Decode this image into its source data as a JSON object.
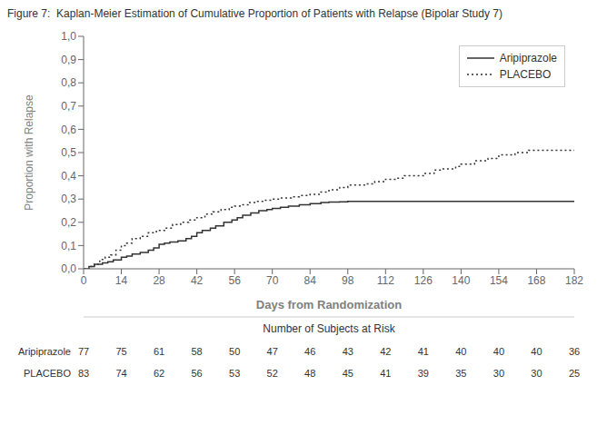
{
  "chart_data": {
    "type": "step",
    "title": "Figure 7:  Kaplan-Meier Estimation of Cumulative Proportion of Patients with Relapse (Bipolar Study 7)",
    "xlabel": "Days from Randomization",
    "ylabel": "Proportion with Relapse",
    "xlim": [
      0,
      182
    ],
    "ylim": [
      0.0,
      1.0
    ],
    "xticks": [
      0,
      14,
      28,
      42,
      56,
      70,
      84,
      98,
      112,
      126,
      140,
      154,
      168,
      182
    ],
    "yticks": [
      {
        "value": 0.0,
        "label": "0,0"
      },
      {
        "value": 0.1,
        "label": "0,1"
      },
      {
        "value": 0.2,
        "label": "0,2"
      },
      {
        "value": 0.3,
        "label": "0,3"
      },
      {
        "value": 0.4,
        "label": "0,4"
      },
      {
        "value": 0.5,
        "label": "0,5"
      },
      {
        "value": 0.6,
        "label": "0,6"
      },
      {
        "value": 0.7,
        "label": "0,7"
      },
      {
        "value": 0.8,
        "label": "0,8"
      },
      {
        "value": 0.9,
        "label": "0,9"
      },
      {
        "value": 1.0,
        "label": "1,0"
      }
    ],
    "grid": false,
    "legend": "upper right",
    "series": [
      {
        "name": "Aripiprazole",
        "color": "#333333",
        "line_style": "solid",
        "x": [
          0,
          2,
          4,
          7,
          9,
          11,
          14,
          16,
          18,
          21,
          24,
          26,
          28,
          30,
          32,
          35,
          38,
          40,
          42,
          44,
          47,
          49,
          52,
          55,
          57,
          59,
          62,
          65,
          68,
          70,
          73,
          76,
          80,
          84,
          88,
          91,
          95,
          98,
          102,
          105,
          108,
          112,
          116,
          119,
          182
        ],
        "values": [
          0.0,
          0.01,
          0.02,
          0.025,
          0.03,
          0.038,
          0.05,
          0.055,
          0.063,
          0.07,
          0.08,
          0.09,
          0.105,
          0.11,
          0.115,
          0.12,
          0.13,
          0.14,
          0.155,
          0.165,
          0.175,
          0.185,
          0.2,
          0.21,
          0.22,
          0.23,
          0.24,
          0.25,
          0.255,
          0.26,
          0.265,
          0.27,
          0.275,
          0.28,
          0.285,
          0.287,
          0.288,
          0.29,
          0.29,
          0.29,
          0.29,
          0.29,
          0.29,
          0.29,
          0.29
        ]
      },
      {
        "name": "PLACEBO",
        "color": "#333333",
        "line_style": "dotted",
        "x": [
          0,
          2,
          4,
          6,
          8,
          10,
          12,
          14,
          16,
          18,
          21,
          24,
          27,
          30,
          33,
          36,
          39,
          42,
          45,
          48,
          51,
          54,
          56,
          58,
          61,
          64,
          67,
          70,
          73,
          77,
          80,
          84,
          88,
          91,
          95,
          98,
          105,
          108,
          112,
          116,
          119,
          126,
          130,
          133,
          138,
          140,
          145,
          150,
          154,
          160,
          165,
          168,
          175,
          182
        ],
        "values": [
          0.0,
          0.01,
          0.02,
          0.04,
          0.05,
          0.06,
          0.08,
          0.1,
          0.11,
          0.13,
          0.14,
          0.155,
          0.165,
          0.175,
          0.19,
          0.2,
          0.21,
          0.22,
          0.235,
          0.245,
          0.255,
          0.265,
          0.27,
          0.275,
          0.285,
          0.29,
          0.295,
          0.3,
          0.305,
          0.31,
          0.315,
          0.32,
          0.33,
          0.34,
          0.35,
          0.36,
          0.365,
          0.375,
          0.385,
          0.39,
          0.4,
          0.41,
          0.425,
          0.43,
          0.44,
          0.45,
          0.465,
          0.475,
          0.49,
          0.5,
          0.51,
          0.51,
          0.51,
          0.51
        ]
      }
    ],
    "risk_table": {
      "title": "Number of Subjects at Risk",
      "x": [
        0,
        14,
        28,
        42,
        56,
        70,
        84,
        98,
        112,
        126,
        140,
        154,
        168,
        182
      ],
      "rows": [
        {
          "name": "Aripiprazole",
          "values": [
            77,
            75,
            61,
            58,
            50,
            47,
            46,
            43,
            42,
            41,
            40,
            40,
            40,
            36
          ]
        },
        {
          "name": "PLACEBO",
          "values": [
            83,
            74,
            62,
            56,
            53,
            52,
            48,
            45,
            41,
            39,
            35,
            30,
            30,
            25
          ]
        }
      ]
    }
  }
}
